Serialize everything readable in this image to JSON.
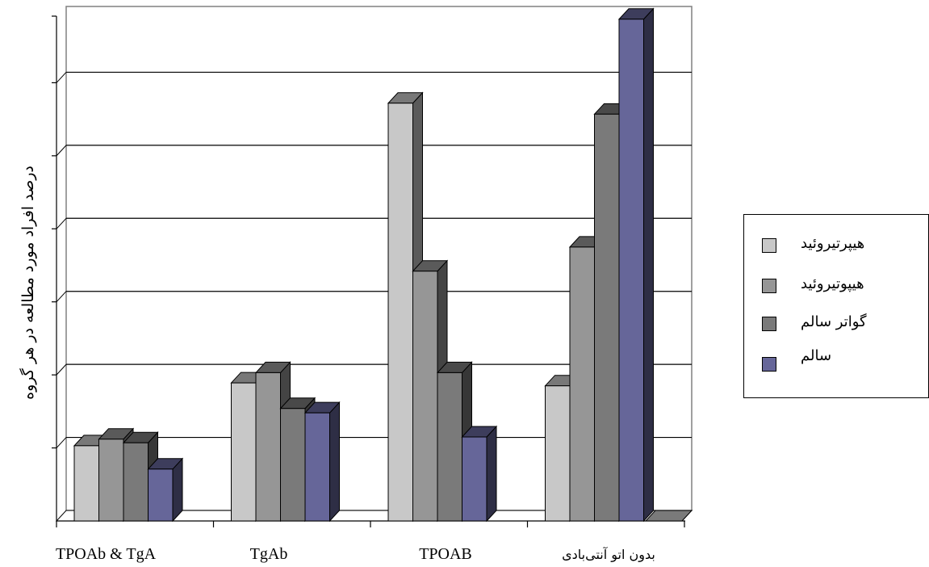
{
  "chart_data": {
    "type": "bar",
    "title": "",
    "xlabel": "",
    "ylabel": "درصد افراد مورد مطالعه در هر گروه",
    "categories": [
      "TPOAb & TgA",
      "TgAb",
      "TPOAB",
      "بدون اتو آنتی‌بادی"
    ],
    "series": [
      {
        "name": "هیپرتیروئید",
        "color": "#c8c8c8",
        "values": [
          10.3,
          18.9,
          57.2,
          18.5
        ]
      },
      {
        "name": "هیپوتیروئید",
        "color": "#969696",
        "values": [
          11.2,
          20.3,
          34.2,
          37.5
        ]
      },
      {
        "name": "گواتر سالم",
        "color": "#7a7a7a",
        "values": [
          10.7,
          15.4,
          20.3,
          55.7
        ]
      },
      {
        "name": "سالم",
        "color": "#666699",
        "values": [
          7.1,
          14.8,
          11.5,
          68.7
        ]
      }
    ],
    "ylim": [
      0,
      70
    ],
    "y_tick_labels_visible": false,
    "grid": true,
    "legend": "right"
  }
}
